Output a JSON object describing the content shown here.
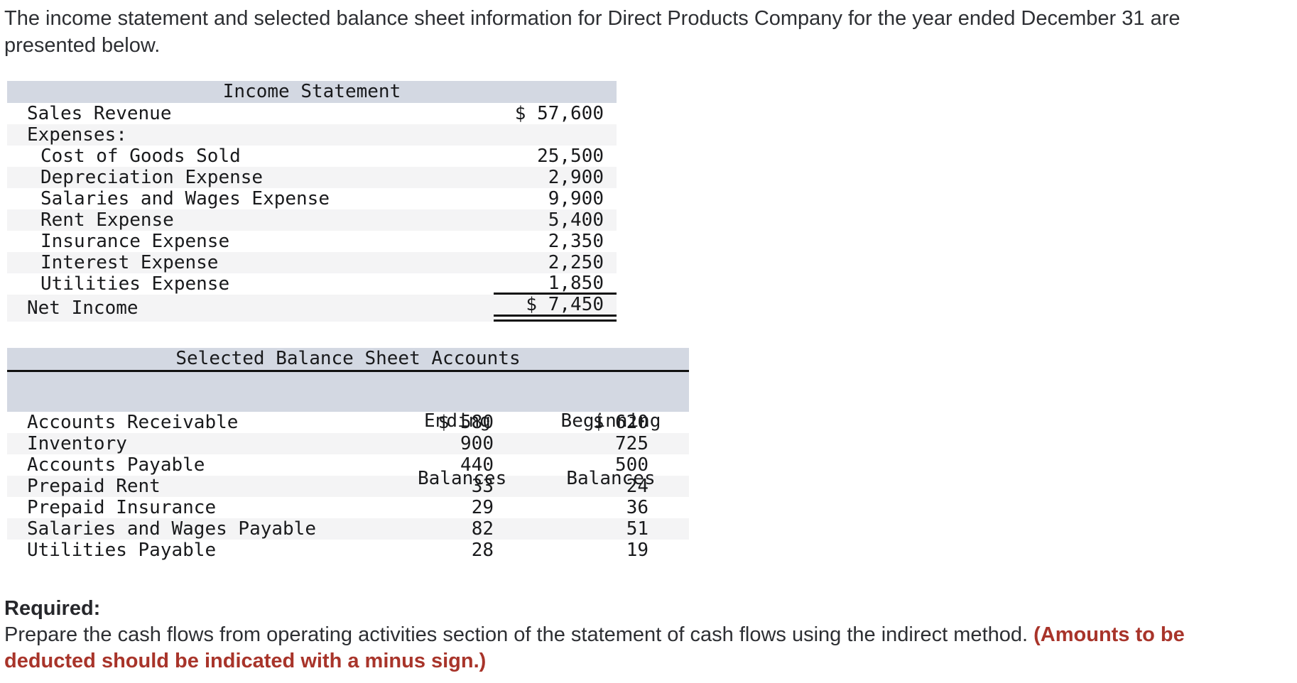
{
  "intro": {
    "line1": "The income statement and selected balance sheet information for Direct Products Company for the year ended December 31 are",
    "line2": "presented below."
  },
  "income_statement": {
    "title": "Income Statement",
    "rows": [
      {
        "label": "Sales Revenue",
        "amount": "$ 57,600"
      },
      {
        "label": "Expenses:",
        "amount": ""
      },
      {
        "label": "Cost of Goods Sold",
        "amount": "25,500"
      },
      {
        "label": "Depreciation Expense",
        "amount": "2,900"
      },
      {
        "label": "Salaries and Wages Expense",
        "amount": "9,900"
      },
      {
        "label": "Rent Expense",
        "amount": "5,400"
      },
      {
        "label": "Insurance Expense",
        "amount": "2,350"
      },
      {
        "label": "Interest Expense",
        "amount": "2,250"
      },
      {
        "label": "Utilities Expense",
        "amount": "1,850"
      },
      {
        "label": "Net Income",
        "amount": "$ 7,450"
      }
    ]
  },
  "balance_sheet": {
    "title": "Selected Balance Sheet Accounts",
    "columns": {
      "ending": {
        "line1": "Ending",
        "line2": "Balances"
      },
      "beginning": {
        "line1": "Beginning",
        "line2": "Balances"
      }
    },
    "rows": [
      {
        "label": "Accounts Receivable",
        "ending": "$ 580",
        "beginning": "$ 620"
      },
      {
        "label": "Inventory",
        "ending": "900",
        "beginning": "725"
      },
      {
        "label": "Accounts Payable",
        "ending": "440",
        "beginning": "500"
      },
      {
        "label": "Prepaid Rent",
        "ending": "33",
        "beginning": "24"
      },
      {
        "label": "Prepaid Insurance",
        "ending": "29",
        "beginning": "36"
      },
      {
        "label": "Salaries and Wages Payable",
        "ending": "82",
        "beginning": "51"
      },
      {
        "label": "Utilities Payable",
        "ending": "28",
        "beginning": "19"
      }
    ]
  },
  "required": {
    "heading": "Required:",
    "line1_black": "Prepare the cash flows from operating activities section of the statement of cash flows using the indirect method. ",
    "line1_red": "(Amounts to be",
    "line2_red": "deducted should be indicated with a minus sign.)"
  },
  "colors": {
    "table_header_band": "#d3d8e2",
    "zebra_row": "#f4f4f5",
    "rule_black": "#111111",
    "required_red": "#a8342a",
    "body_text": "#2d2f33",
    "table_text": "#191a1c"
  }
}
